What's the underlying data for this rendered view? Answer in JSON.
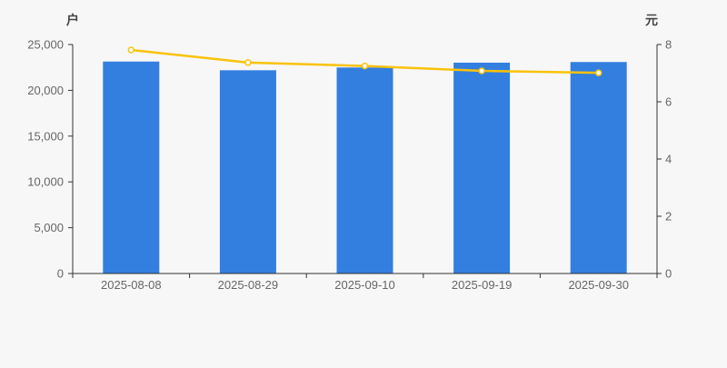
{
  "chart_data": {
    "type": "bar+line",
    "title": "",
    "categories": [
      "2025-08-08",
      "2025-08-29",
      "2025-09-10",
      "2025-09-19",
      "2025-09-30"
    ],
    "series": [
      {
        "id": "bar-series",
        "type": "bar",
        "y_axis": "left",
        "unit": "户",
        "color": "#337fe0",
        "values": [
          23140,
          22190,
          22490,
          23020,
          23090
        ]
      },
      {
        "id": "line-series",
        "type": "line",
        "y_axis": "right",
        "unit": "元",
        "color": "#fac20a",
        "marker_fill": "#ffffff",
        "values": [
          7.81,
          7.37,
          7.25,
          7.08,
          7.01
        ]
      }
    ],
    "left_axis": {
      "name": "户",
      "min": 0,
      "max": 25000,
      "tick_interval": 5000,
      "tick_labels": [
        "0",
        "5,000",
        "10,000",
        "15,000",
        "20,000",
        "25,000"
      ]
    },
    "right_axis": {
      "name": "元",
      "min": 0,
      "max": 8,
      "tick_interval": 2,
      "tick_labels": [
        "0",
        "2",
        "4",
        "6",
        "8"
      ]
    },
    "grid": false,
    "legend": "none",
    "style": {
      "background": "#f7f7f7",
      "axis_line_color": "#333333",
      "tick_label_color": "#666666",
      "axis_name_color": "#444444"
    }
  }
}
